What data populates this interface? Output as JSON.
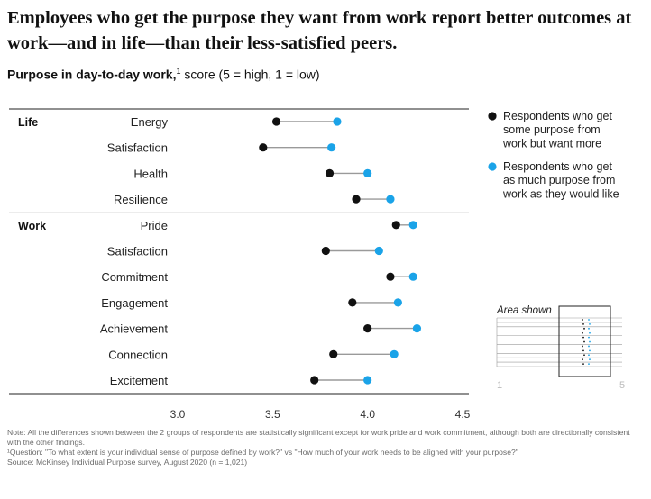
{
  "headline": "Employees who get the purpose they want from work report better outcomes at work—and in life—than their less-satisfied peers.",
  "subtitle": {
    "bold": "Purpose in day-to-day work,",
    "sup": "1",
    "rest": " score (5 = high, 1 = low)"
  },
  "chart_data": {
    "type": "dot-plot",
    "xlim": [
      3.0,
      4.5
    ],
    "xticks": [
      "3.0",
      "3.5",
      "4.0",
      "4.5"
    ],
    "grid": false,
    "legend_position": "right",
    "groups": [
      {
        "name": "Life",
        "items": [
          "Energy",
          "Satisfaction",
          "Health",
          "Resilience"
        ]
      },
      {
        "name": "Work",
        "items": [
          "Pride",
          "Satisfaction",
          "Commitment",
          "Engagement",
          "Achievement",
          "Connection",
          "Excitement"
        ]
      }
    ],
    "categories": [
      "Energy",
      "Satisfaction",
      "Health",
      "Resilience",
      "Pride",
      "Satisfaction",
      "Commitment",
      "Engagement",
      "Achievement",
      "Connection",
      "Excitement"
    ],
    "series": [
      {
        "name": "Respondents who get some purpose from work but want more",
        "color": "#111111",
        "values": [
          3.52,
          3.45,
          3.8,
          3.94,
          4.15,
          3.78,
          4.12,
          3.92,
          4.0,
          3.82,
          3.72
        ]
      },
      {
        "name": "Respondents who get as much purpose from work as they would like",
        "color": "#1aa3e8",
        "values": [
          3.84,
          3.81,
          4.0,
          4.12,
          4.24,
          4.06,
          4.24,
          4.16,
          4.26,
          4.14,
          4.0
        ]
      }
    ],
    "legend": [
      {
        "lines": [
          "Respondents who get",
          "some purpose from",
          "work but want more"
        ],
        "color": "#111111"
      },
      {
        "lines": [
          "Respondents who get",
          "as much purpose from",
          "work as they would like"
        ],
        "color": "#1aa3e8"
      }
    ],
    "inset": {
      "title": "Area shown",
      "min_label": "1",
      "max_label": "5"
    }
  },
  "footnotes": [
    "Note: All the differences shown between the 2 groups of respondents are statistically significant except for work pride and work commitment, although both are directionally consistent with the other findings.",
    "¹Question: \"To what extent is your individual sense of purpose defined by work?\" vs \"How much of your work needs to be aligned with your purpose?\"",
    "Source: McKinsey Individual Purpose survey, August 2020 (n = 1,021)"
  ]
}
